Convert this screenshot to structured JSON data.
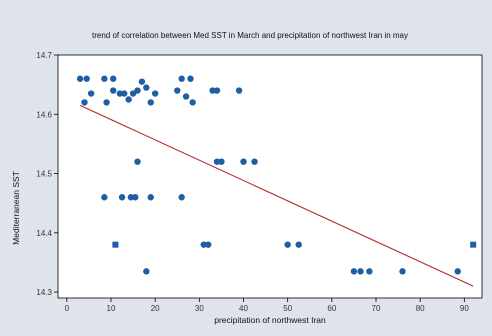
{
  "chart_data": {
    "type": "scatter",
    "title": "trend of correlation between Med SST in March and precipitation of northwest Iran in may",
    "xlabel": "precipitation of northwest Iran",
    "ylabel": "Mediterranean SST",
    "xlim": [
      -2,
      94
    ],
    "ylim": [
      14.29,
      14.7
    ],
    "xticks": [
      0,
      10,
      20,
      30,
      40,
      50,
      60,
      70,
      80,
      90
    ],
    "yticks": [
      14.3,
      14.4,
      14.5,
      14.6,
      14.7
    ],
    "tick_labels_x": [
      "0",
      "10",
      "20",
      "30",
      "40",
      "50",
      "60",
      "70",
      "80",
      "90"
    ],
    "tick_labels_y": [
      "14.3",
      "14.4",
      "14.5",
      "14.6",
      "14.7"
    ],
    "grid": false,
    "legend": "none",
    "colors": {
      "background": "#dfe3eb",
      "plot_area": "#ffffff",
      "marker": "#1f5ea3",
      "fit_line": "#b52a2a"
    },
    "series": [
      {
        "marker": "circle",
        "points": [
          {
            "x": 3,
            "y": 14.66,
            "shape": "circle"
          },
          {
            "x": 4.5,
            "y": 14.66,
            "shape": "circle"
          },
          {
            "x": 4,
            "y": 14.62,
            "shape": "circle"
          },
          {
            "x": 5.5,
            "y": 14.635,
            "shape": "circle"
          },
          {
            "x": 8.5,
            "y": 14.66,
            "shape": "circle"
          },
          {
            "x": 10.5,
            "y": 14.66,
            "shape": "circle"
          },
          {
            "x": 9,
            "y": 14.62,
            "shape": "circle"
          },
          {
            "x": 10.5,
            "y": 14.64,
            "shape": "circle"
          },
          {
            "x": 12,
            "y": 14.635,
            "shape": "circle"
          },
          {
            "x": 13,
            "y": 14.635,
            "shape": "circle"
          },
          {
            "x": 14,
            "y": 14.625,
            "shape": "circle"
          },
          {
            "x": 15,
            "y": 14.635,
            "shape": "circle"
          },
          {
            "x": 16,
            "y": 14.64,
            "shape": "circle"
          },
          {
            "x": 17,
            "y": 14.655,
            "shape": "circle"
          },
          {
            "x": 18,
            "y": 14.645,
            "shape": "circle"
          },
          {
            "x": 19,
            "y": 14.62,
            "shape": "circle"
          },
          {
            "x": 20,
            "y": 14.635,
            "shape": "circle"
          },
          {
            "x": 25,
            "y": 14.64,
            "shape": "circle"
          },
          {
            "x": 26,
            "y": 14.66,
            "shape": "circle"
          },
          {
            "x": 27,
            "y": 14.63,
            "shape": "circle"
          },
          {
            "x": 28,
            "y": 14.66,
            "shape": "circle"
          },
          {
            "x": 28.5,
            "y": 14.62,
            "shape": "circle"
          },
          {
            "x": 33,
            "y": 14.64,
            "shape": "circle"
          },
          {
            "x": 34,
            "y": 14.64,
            "shape": "circle"
          },
          {
            "x": 39,
            "y": 14.64,
            "shape": "circle"
          },
          {
            "x": 16,
            "y": 14.52,
            "shape": "circle"
          },
          {
            "x": 34,
            "y": 14.52,
            "shape": "circle"
          },
          {
            "x": 35,
            "y": 14.52,
            "shape": "circle"
          },
          {
            "x": 40,
            "y": 14.52,
            "shape": "circle"
          },
          {
            "x": 42.5,
            "y": 14.52,
            "shape": "circle"
          },
          {
            "x": 8.5,
            "y": 14.46,
            "shape": "circle"
          },
          {
            "x": 12.5,
            "y": 14.46,
            "shape": "circle"
          },
          {
            "x": 14.5,
            "y": 14.46,
            "shape": "circle"
          },
          {
            "x": 15.5,
            "y": 14.46,
            "shape": "circle"
          },
          {
            "x": 19,
            "y": 14.46,
            "shape": "circle"
          },
          {
            "x": 26,
            "y": 14.46,
            "shape": "circle"
          },
          {
            "x": 11,
            "y": 14.38,
            "shape": "square"
          },
          {
            "x": 31,
            "y": 14.38,
            "shape": "circle"
          },
          {
            "x": 32,
            "y": 14.38,
            "shape": "circle"
          },
          {
            "x": 50,
            "y": 14.38,
            "shape": "circle"
          },
          {
            "x": 52.5,
            "y": 14.38,
            "shape": "circle"
          },
          {
            "x": 92,
            "y": 14.38,
            "shape": "square"
          },
          {
            "x": 18,
            "y": 14.335,
            "shape": "circle"
          },
          {
            "x": 65,
            "y": 14.335,
            "shape": "circle"
          },
          {
            "x": 66.5,
            "y": 14.335,
            "shape": "circle"
          },
          {
            "x": 68.5,
            "y": 14.335,
            "shape": "circle"
          },
          {
            "x": 76,
            "y": 14.335,
            "shape": "circle"
          },
          {
            "x": 88.5,
            "y": 14.335,
            "shape": "circle"
          }
        ]
      }
    ],
    "fit_line": {
      "x": [
        3,
        92
      ],
      "y": [
        14.615,
        14.31
      ]
    }
  }
}
